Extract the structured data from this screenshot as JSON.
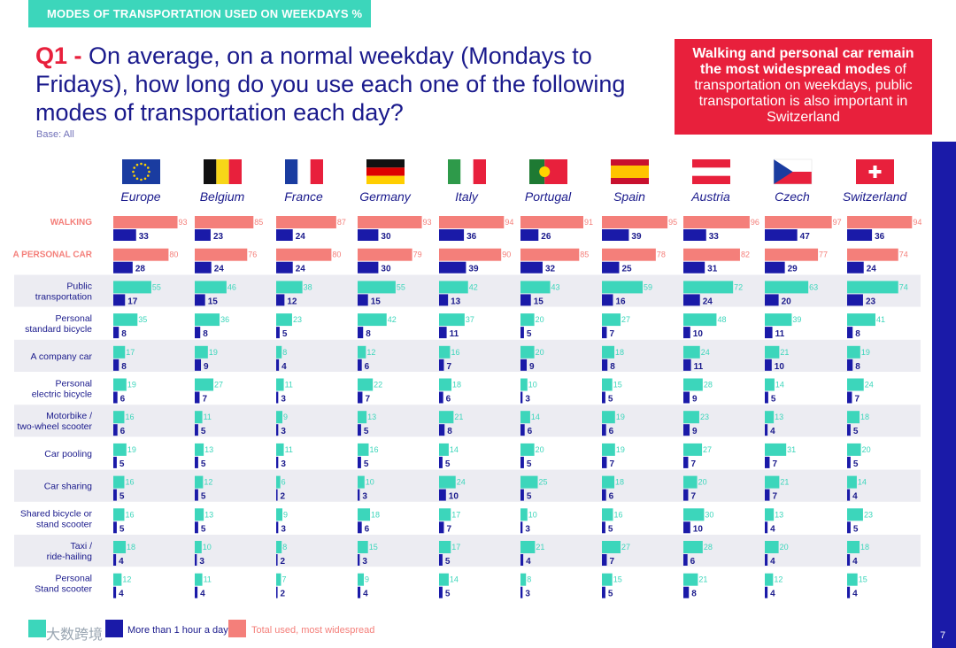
{
  "header": {
    "title": "MODES OF TRANSPORTATION USED ON WEEKDAYS %"
  },
  "question": {
    "label": "Q1 -",
    "text": " On average, on a normal weekday (Mondays to Fridays), how long do you use each one of the following modes of transportation each day?",
    "base": "Base: All"
  },
  "highlight": {
    "bold": "Walking and personal car remain the most widespread modes",
    "rest": " of transportation on weekdays, public transportation is also important in Switzerland"
  },
  "legend": {
    "dark_label": "More than 1 hour a day",
    "light_label": "Total used, most widespread"
  },
  "page_number": "7",
  "watermark": "大数跨境",
  "colors": {
    "navy": "#1a1aa8",
    "teal": "#3cd6bb",
    "salmon": "#f47f7a",
    "red": "#e8203c",
    "band": "#ececf2"
  },
  "chart_data": {
    "type": "bar",
    "title": "Q1 - On average, on a normal weekday (Mondays to Fridays), how long do you use each one of the following modes of transportation each day?",
    "countries": [
      "Europe",
      "Belgium",
      "France",
      "Germany",
      "Italy",
      "Portugal",
      "Spain",
      "Austria",
      "Czech",
      "Switzerland"
    ],
    "modes": [
      {
        "label": "WALKING",
        "highlight": true,
        "total": [
          93,
          85,
          87,
          93,
          94,
          91,
          95,
          96,
          97,
          94
        ],
        "over_hour": [
          33,
          23,
          24,
          30,
          36,
          26,
          39,
          33,
          47,
          36
        ]
      },
      {
        "label": "A PERSONAL CAR",
        "highlight": true,
        "total": [
          80,
          76,
          80,
          79,
          90,
          85,
          78,
          82,
          77,
          74
        ],
        "over_hour": [
          28,
          24,
          24,
          30,
          39,
          32,
          25,
          31,
          29,
          24
        ]
      },
      {
        "label": "Public transportation",
        "highlight": false,
        "total": [
          55,
          46,
          38,
          55,
          42,
          43,
          59,
          72,
          63,
          74
        ],
        "over_hour": [
          17,
          15,
          12,
          15,
          13,
          15,
          16,
          24,
          20,
          23
        ]
      },
      {
        "label": "Personal standard bicycle",
        "highlight": false,
        "total": [
          35,
          36,
          23,
          42,
          37,
          20,
          27,
          48,
          39,
          41
        ],
        "over_hour": [
          8,
          8,
          5,
          8,
          11,
          5,
          7,
          10,
          11,
          8
        ]
      },
      {
        "label": "A company car",
        "highlight": false,
        "total": [
          17,
          19,
          8,
          12,
          16,
          20,
          18,
          24,
          21,
          19
        ],
        "over_hour": [
          8,
          9,
          4,
          6,
          7,
          9,
          8,
          11,
          10,
          8
        ]
      },
      {
        "label": "Personal electric bicycle",
        "highlight": false,
        "total": [
          19,
          27,
          11,
          22,
          18,
          10,
          15,
          28,
          14,
          24
        ],
        "over_hour": [
          6,
          7,
          3,
          7,
          6,
          3,
          5,
          9,
          5,
          7
        ]
      },
      {
        "label": "Motorbike / two-wheel scooter",
        "highlight": false,
        "total": [
          16,
          11,
          9,
          13,
          21,
          14,
          19,
          23,
          13,
          18
        ],
        "over_hour": [
          6,
          5,
          3,
          5,
          8,
          6,
          6,
          9,
          4,
          5
        ]
      },
      {
        "label": "Car pooling",
        "highlight": false,
        "total": [
          19,
          13,
          11,
          16,
          14,
          20,
          19,
          27,
          31,
          20
        ],
        "over_hour": [
          5,
          5,
          3,
          5,
          5,
          5,
          7,
          7,
          7,
          5
        ]
      },
      {
        "label": "Car sharing",
        "highlight": false,
        "total": [
          16,
          12,
          6,
          10,
          24,
          25,
          18,
          20,
          21,
          14
        ],
        "over_hour": [
          5,
          5,
          2,
          3,
          10,
          5,
          6,
          7,
          7,
          4
        ]
      },
      {
        "label": "Shared bicycle or stand scooter",
        "highlight": false,
        "total": [
          16,
          13,
          9,
          18,
          17,
          10,
          16,
          30,
          13,
          23
        ],
        "over_hour": [
          5,
          5,
          3,
          6,
          7,
          3,
          5,
          10,
          4,
          5
        ]
      },
      {
        "label": "Taxi / ride-hailing",
        "highlight": false,
        "total": [
          18,
          10,
          8,
          15,
          17,
          21,
          27,
          28,
          20,
          18
        ],
        "over_hour": [
          4,
          3,
          2,
          3,
          5,
          4,
          7,
          6,
          4,
          4
        ]
      },
      {
        "label": "Personal Stand scooter",
        "highlight": false,
        "total": [
          12,
          11,
          7,
          9,
          14,
          8,
          15,
          21,
          12,
          15
        ],
        "over_hour": [
          4,
          4,
          2,
          4,
          5,
          3,
          5,
          8,
          4,
          4
        ]
      }
    ],
    "series": [
      {
        "name": "More than 1 hour a day",
        "key": "over_hour"
      },
      {
        "name": "Total used, most widespread",
        "key": "total"
      }
    ],
    "xlim": [
      0,
      100
    ]
  }
}
